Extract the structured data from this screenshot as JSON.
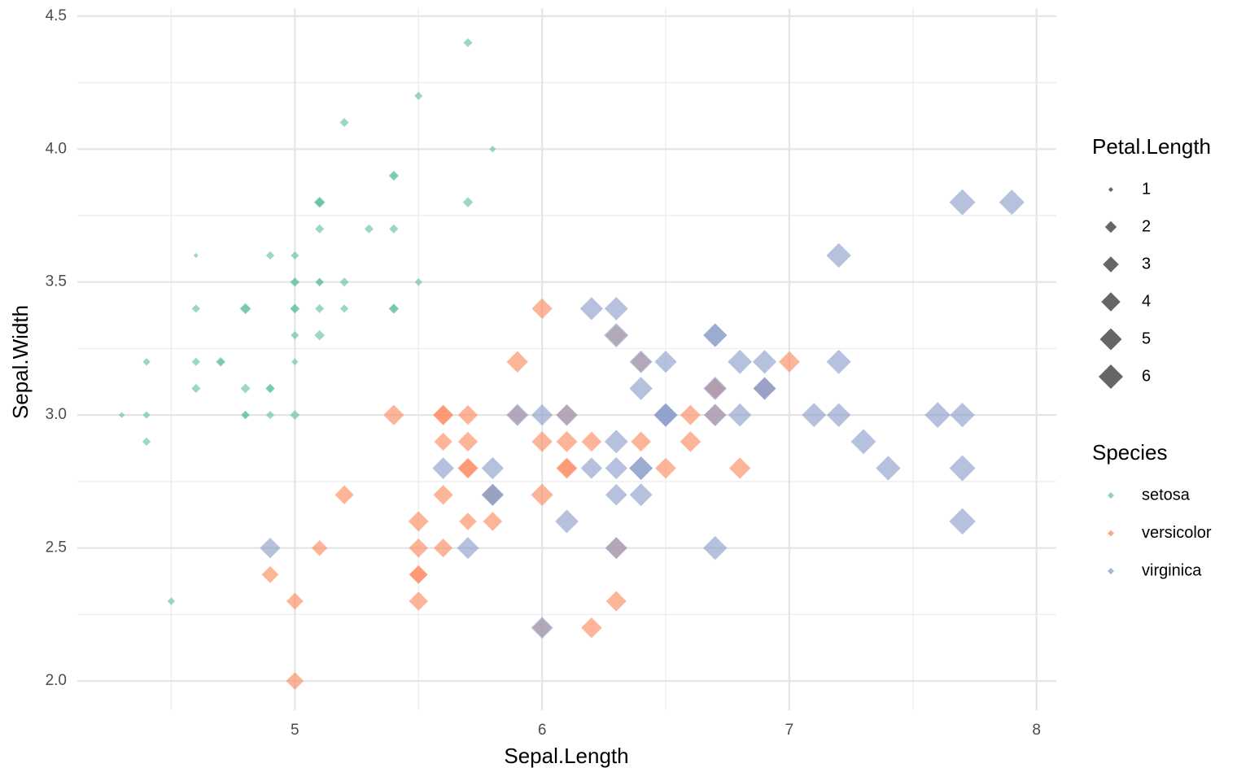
{
  "chart_data": {
    "type": "scatter",
    "x_label": "Sepal.Length",
    "y_label": "Sepal.Width",
    "xlim": [
      4.12,
      8.08
    ],
    "ylim": [
      1.89,
      4.53
    ],
    "xticks": [
      5,
      6,
      7,
      8
    ],
    "yticks": [
      {
        "value": 2,
        "label": "2.0"
      },
      2.5,
      {
        "value": 3,
        "label": "3.0"
      },
      3.5,
      {
        "value": 4,
        "label": "4.0"
      },
      4.5
    ],
    "grid": true,
    "size_legend": {
      "title": "Petal.Length",
      "values": [
        1,
        2,
        3,
        4,
        5,
        6
      ]
    },
    "color_legend_title": "Species",
    "series": [
      {
        "name": "setosa",
        "color": "#66c2a5",
        "x": [
          5.1,
          4.9,
          4.7,
          4.6,
          5.0,
          5.4,
          4.6,
          5.0,
          4.4,
          4.9,
          5.4,
          4.8,
          4.8,
          4.3,
          5.8,
          5.7,
          5.4,
          5.1,
          5.7,
          5.1,
          5.4,
          5.1,
          4.6,
          5.1,
          4.8,
          5.0,
          5.0,
          5.2,
          5.2,
          4.7,
          4.8,
          5.4,
          5.2,
          5.5,
          4.9,
          5.0,
          5.5,
          4.9,
          4.4,
          5.1,
          5.0,
          4.5,
          4.4,
          5.0,
          5.1,
          4.8,
          5.1,
          4.6,
          5.3,
          5.0
        ],
        "values": [
          3.5,
          3.0,
          3.2,
          3.1,
          3.6,
          3.9,
          3.4,
          3.4,
          2.9,
          3.1,
          3.7,
          3.4,
          3.0,
          3.0,
          4.0,
          4.4,
          3.9,
          3.5,
          3.8,
          3.8,
          3.4,
          3.7,
          3.6,
          3.3,
          3.4,
          3.0,
          3.4,
          3.5,
          3.4,
          3.2,
          3.1,
          3.4,
          4.1,
          4.2,
          3.1,
          3.2,
          3.5,
          3.6,
          3.0,
          3.4,
          3.5,
          2.3,
          3.2,
          3.5,
          3.8,
          3.0,
          3.8,
          3.2,
          3.7,
          3.3
        ],
        "size": [
          1.4,
          1.4,
          1.3,
          1.5,
          1.4,
          1.7,
          1.4,
          1.5,
          1.4,
          1.5,
          1.5,
          1.6,
          1.4,
          1.1,
          1.2,
          1.5,
          1.3,
          1.4,
          1.7,
          1.5,
          1.7,
          1.5,
          1.0,
          1.7,
          1.9,
          1.6,
          1.6,
          1.5,
          1.4,
          1.6,
          1.6,
          1.5,
          1.5,
          1.4,
          1.5,
          1.2,
          1.3,
          1.4,
          1.3,
          1.5,
          1.3,
          1.3,
          1.3,
          1.6,
          1.9,
          1.4,
          1.6,
          1.4,
          1.5,
          1.4
        ]
      },
      {
        "name": "versicolor",
        "color": "#fc8d62",
        "x": [
          7.0,
          6.4,
          6.9,
          5.5,
          6.5,
          5.7,
          6.3,
          4.9,
          6.6,
          5.2,
          5.0,
          5.9,
          6.0,
          6.1,
          5.6,
          6.7,
          5.6,
          5.8,
          6.2,
          5.6,
          5.9,
          6.1,
          6.3,
          6.1,
          6.4,
          6.6,
          6.8,
          6.7,
          6.0,
          5.7,
          5.5,
          5.5,
          5.8,
          6.0,
          5.4,
          6.0,
          6.7,
          6.3,
          5.6,
          5.5,
          5.5,
          6.1,
          5.8,
          5.0,
          5.6,
          5.7,
          5.7,
          6.2,
          5.1,
          5.7
        ],
        "values": [
          3.2,
          3.2,
          3.1,
          2.3,
          2.8,
          2.8,
          3.3,
          2.4,
          2.9,
          2.7,
          2.0,
          3.0,
          2.2,
          2.9,
          2.9,
          3.1,
          3.0,
          2.7,
          2.2,
          2.5,
          3.2,
          2.8,
          2.5,
          2.8,
          2.9,
          3.0,
          2.8,
          3.0,
          2.9,
          2.6,
          2.4,
          2.4,
          2.7,
          2.7,
          3.0,
          3.4,
          3.1,
          2.3,
          3.0,
          2.5,
          2.6,
          3.0,
          2.6,
          2.3,
          2.7,
          3.0,
          2.9,
          2.9,
          2.5,
          2.8
        ],
        "size": [
          4.7,
          4.5,
          4.9,
          4.0,
          4.6,
          4.5,
          4.7,
          3.3,
          4.6,
          3.9,
          3.5,
          4.2,
          4.0,
          4.7,
          3.6,
          4.4,
          4.5,
          4.1,
          4.5,
          3.9,
          4.8,
          4.0,
          4.9,
          4.7,
          4.3,
          4.4,
          4.8,
          5.0,
          4.5,
          3.5,
          3.8,
          3.7,
          3.9,
          5.1,
          4.5,
          4.5,
          4.7,
          4.4,
          4.1,
          4.0,
          4.4,
          4.6,
          4.0,
          3.3,
          4.2,
          4.2,
          4.2,
          4.3,
          3.0,
          4.1
        ]
      },
      {
        "name": "virginica",
        "color": "#8da0cb",
        "x": [
          6.3,
          5.8,
          7.1,
          6.3,
          6.5,
          7.6,
          4.9,
          7.3,
          6.7,
          7.2,
          6.5,
          6.4,
          6.8,
          5.7,
          5.8,
          6.4,
          6.5,
          7.7,
          7.7,
          6.0,
          6.9,
          5.6,
          7.7,
          6.3,
          6.7,
          7.2,
          6.2,
          6.1,
          6.4,
          7.2,
          7.4,
          7.9,
          6.4,
          6.3,
          6.1,
          7.7,
          6.3,
          6.4,
          6.0,
          6.9,
          6.7,
          6.9,
          5.8,
          6.8,
          6.7,
          6.7,
          6.3,
          6.5,
          6.2,
          5.9
        ],
        "values": [
          3.3,
          2.7,
          3.0,
          2.9,
          3.0,
          3.0,
          2.5,
          2.9,
          2.5,
          3.6,
          3.2,
          2.7,
          3.0,
          2.5,
          2.8,
          3.2,
          3.0,
          3.8,
          2.6,
          2.2,
          3.2,
          2.8,
          2.8,
          2.7,
          3.3,
          3.2,
          2.8,
          3.0,
          2.8,
          3.0,
          2.8,
          3.8,
          2.8,
          2.8,
          2.6,
          3.0,
          3.4,
          3.1,
          3.0,
          3.1,
          3.1,
          3.1,
          2.7,
          3.2,
          3.3,
          3.0,
          2.5,
          3.0,
          3.4,
          3.0
        ],
        "size": [
          6.0,
          5.1,
          5.9,
          5.6,
          5.8,
          6.6,
          4.5,
          6.3,
          5.8,
          6.1,
          5.1,
          5.3,
          5.5,
          5.0,
          5.1,
          5.3,
          5.5,
          6.7,
          6.9,
          5.0,
          5.7,
          4.9,
          6.7,
          4.9,
          5.7,
          6.0,
          4.8,
          4.9,
          5.6,
          5.8,
          6.1,
          6.4,
          5.6,
          5.1,
          5.6,
          6.1,
          5.6,
          5.5,
          4.8,
          5.4,
          5.6,
          5.1,
          5.1,
          5.9,
          5.7,
          5.2,
          5.0,
          5.2,
          5.4,
          5.1
        ]
      }
    ]
  }
}
